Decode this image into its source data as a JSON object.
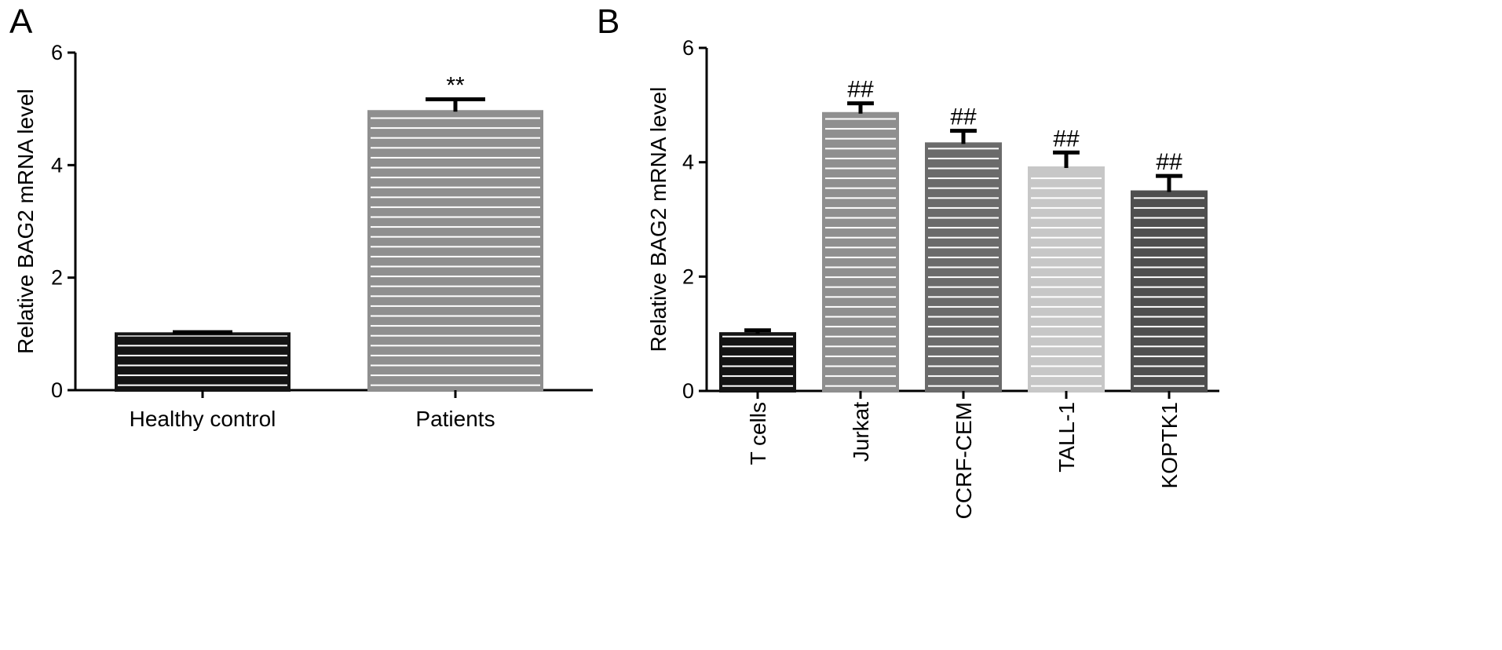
{
  "chart_data": [
    {
      "type": "bar",
      "panel_label": "A",
      "title": "",
      "xlabel": "",
      "ylabel": "Relative BAG2 mRNA level",
      "ylim": [
        0,
        6
      ],
      "yticks": [
        0,
        2,
        4,
        6
      ],
      "categories": [
        "Healthy control",
        "Patients"
      ],
      "values": [
        1.0,
        4.95
      ],
      "error": [
        0.03,
        0.22
      ],
      "annotations": [
        "",
        "**"
      ],
      "bar_colors": [
        "#141414",
        "#8f8f8f"
      ],
      "category_label_rotation": "horizontal",
      "legend": "none",
      "grid": false
    },
    {
      "type": "bar",
      "panel_label": "B",
      "title": "",
      "xlabel": "",
      "ylabel": "Relative BAG2 mRNA level",
      "ylim": [
        0,
        6
      ],
      "yticks": [
        0,
        2,
        4,
        6
      ],
      "categories": [
        "T cells",
        "Jurkat",
        "CCRF-CEM",
        "TALL-1",
        "KOPTK1"
      ],
      "values": [
        1.0,
        4.85,
        4.32,
        3.9,
        3.48
      ],
      "error": [
        0.06,
        0.18,
        0.23,
        0.27,
        0.28
      ],
      "annotations": [
        "",
        "##",
        "##",
        "##",
        "##"
      ],
      "bar_colors": [
        "#141414",
        "#8f8f8f",
        "#6b6b6b",
        "#c7c7c7",
        "#4f4f4f"
      ],
      "category_label_rotation": "vertical",
      "legend": "none",
      "grid": false
    }
  ]
}
